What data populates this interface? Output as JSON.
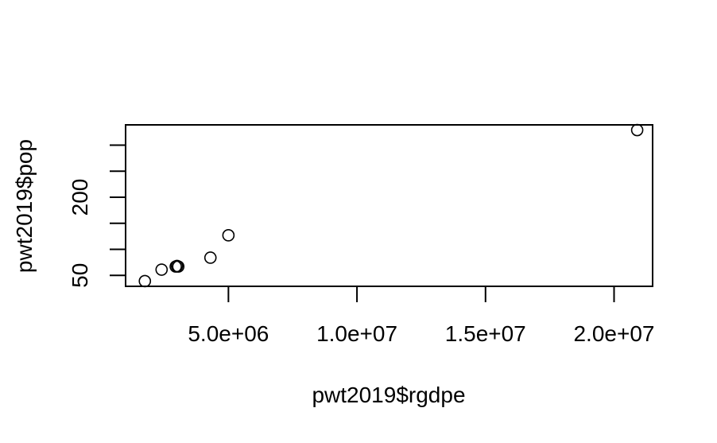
{
  "chart_data": {
    "type": "scatter",
    "title": "",
    "xlabel": "pwt2019$rgdpe",
    "ylabel": "pwt2019$pop",
    "xlim": [
      1000000,
      21500000
    ],
    "ylim": [
      29,
      339
    ],
    "x_ticks": [
      5000000,
      10000000,
      15000000,
      20000000
    ],
    "x_tick_labels": [
      "5.0e+06",
      "1.0e+07",
      "1.5e+07",
      "2.0e+07"
    ],
    "y_ticks": [
      50,
      100,
      150,
      200,
      250,
      300
    ],
    "y_tick_labels": [
      "50",
      "",
      "",
      "200",
      "",
      ""
    ],
    "grid": false,
    "marker": "open-circle",
    "points": [
      {
        "x": 1750000,
        "y": 39
      },
      {
        "x": 2400000,
        "y": 61
      },
      {
        "x": 2950000,
        "y": 67
      },
      {
        "x": 3000000,
        "y": 68
      },
      {
        "x": 3050000,
        "y": 67
      },
      {
        "x": 4300000,
        "y": 84
      },
      {
        "x": 5000000,
        "y": 127
      },
      {
        "x": 20900000,
        "y": 329
      }
    ]
  }
}
